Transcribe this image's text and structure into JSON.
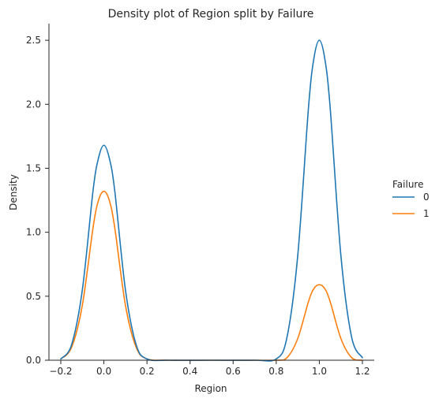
{
  "chart_data": {
    "type": "line",
    "title": "Density plot of Region split by Failure",
    "xlabel": "Region",
    "ylabel": "Density",
    "xlim": [
      -0.255,
      1.255
    ],
    "ylim": [
      0,
      2.63
    ],
    "xticks": [
      -0.2,
      0.0,
      0.2,
      0.4,
      0.6,
      0.8,
      1.0,
      1.2
    ],
    "xtick_labels": [
      "−0.2",
      "0.0",
      "0.2",
      "0.4",
      "0.6",
      "0.8",
      "1.0",
      "1.2"
    ],
    "yticks": [
      0.0,
      0.5,
      1.0,
      1.5,
      2.0,
      2.5
    ],
    "ytick_labels": [
      "0.0",
      "0.5",
      "1.0",
      "1.5",
      "2.0",
      "2.5"
    ],
    "grid": false,
    "legend": {
      "title": "Failure",
      "placement": "right"
    },
    "series": [
      {
        "name": "0",
        "color": "#1f77b4",
        "x": [
          -0.2,
          -0.15,
          -0.1,
          -0.05,
          -0.025,
          0.0,
          0.025,
          0.05,
          0.1,
          0.15,
          0.2,
          0.3,
          0.5,
          0.7,
          0.8,
          0.85,
          0.9,
          0.95,
          0.975,
          1.0,
          1.025,
          1.05,
          1.1,
          1.15,
          1.2
        ],
        "y": [
          0.01,
          0.12,
          0.55,
          1.33,
          1.58,
          1.68,
          1.58,
          1.33,
          0.55,
          0.12,
          0.01,
          0.0,
          0.0,
          0.0,
          0.01,
          0.18,
          0.82,
          1.98,
          2.36,
          2.5,
          2.36,
          1.98,
          0.82,
          0.18,
          0.02
        ]
      },
      {
        "name": "1",
        "color": "#ff7f0e",
        "x": [
          -0.2,
          -0.15,
          -0.1,
          -0.05,
          -0.025,
          0.0,
          0.025,
          0.05,
          0.1,
          0.15,
          0.2,
          0.3,
          0.5,
          0.7,
          0.8,
          0.85,
          0.9,
          0.95,
          0.975,
          1.0,
          1.025,
          1.05,
          1.1,
          1.15,
          1.2
        ],
        "y": [
          0.01,
          0.1,
          0.43,
          1.04,
          1.25,
          1.32,
          1.25,
          1.04,
          0.43,
          0.1,
          0.01,
          0.0,
          0.0,
          0.0,
          0.0,
          0.02,
          0.17,
          0.46,
          0.56,
          0.59,
          0.56,
          0.46,
          0.17,
          0.02,
          0.0
        ]
      }
    ]
  }
}
